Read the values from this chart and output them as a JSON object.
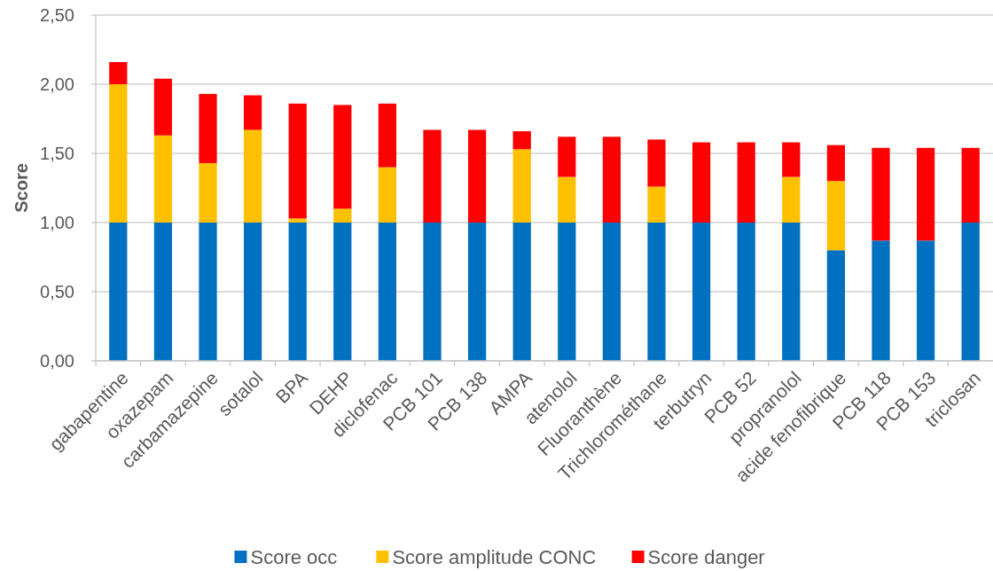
{
  "chart_data": {
    "type": "bar",
    "stacked": true,
    "ylabel": "Score",
    "grid": "y",
    "legend": "bottom",
    "categories": [
      "gabapentine",
      "oxazepam",
      "carbamazepine",
      "sotalol",
      "BPA",
      "DEHP",
      "diclofenac",
      "PCB 101",
      "PCB 138",
      "AMPA",
      "atenolol",
      "Fluoranthène",
      "Trichlorométhane",
      "terbutryn",
      "PCB 52",
      "propranolol",
      "acide fenofibrique",
      "PCB 118",
      "PCB 153",
      "triclosan"
    ],
    "ylim": [
      0,
      2.5
    ],
    "yticks": [
      {
        "value": 0,
        "label": "0,00"
      },
      {
        "value": 0.5,
        "label": "0,50"
      },
      {
        "value": 1,
        "label": "1,00"
      },
      {
        "value": 1.5,
        "label": "1,50"
      },
      {
        "value": 2,
        "label": "2,00"
      },
      {
        "value": 2.5,
        "label": "2,50"
      }
    ],
    "series": [
      {
        "name": "Score occ",
        "color": "#0070c0",
        "values": [
          1,
          1,
          1,
          1,
          1,
          1,
          1,
          1,
          1,
          1,
          1,
          1,
          1,
          1,
          1,
          1,
          0.8,
          0.87,
          0.87,
          1
        ]
      },
      {
        "name": "Score amplitude CONC",
        "color": "#ffc000",
        "values": [
          1,
          0.63,
          0.43,
          0.67,
          0.03,
          0.1,
          0.4,
          0,
          0,
          0.53,
          0.33,
          0,
          0.26,
          0,
          0,
          0.33,
          0.5,
          0,
          0,
          0
        ]
      },
      {
        "name": "Score danger",
        "color": "#ff0000",
        "values": [
          0.16,
          0.41,
          0.5,
          0.25,
          0.83,
          0.75,
          0.46,
          0.67,
          0.67,
          0.13,
          0.29,
          0.62,
          0.34,
          0.58,
          0.58,
          0.25,
          0.26,
          0.67,
          0.67,
          0.54
        ]
      }
    ]
  }
}
